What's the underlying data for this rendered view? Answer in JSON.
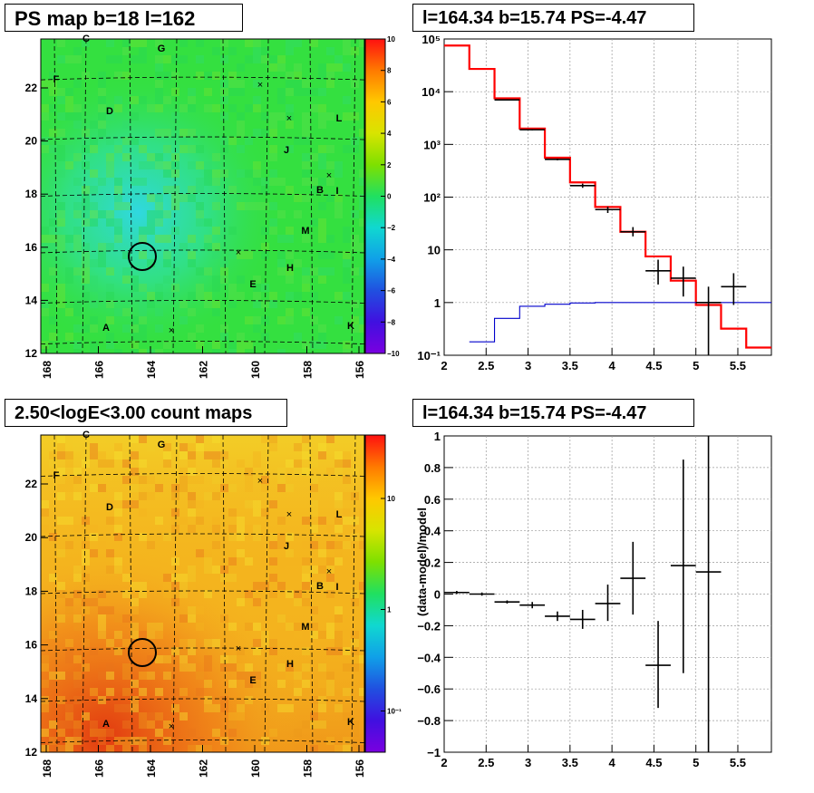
{
  "panels": {
    "ps_map_title": "PS map b=18 l=162",
    "count_map_title": "2.50<logE<3.00 count maps",
    "spectrum_title": "l=164.34 b=15.74 PS=-4.47",
    "residual_title": "l=164.34 b=15.74 PS=-4.47"
  },
  "maps": {
    "x_ticks": [
      "168",
      "166",
      "164",
      "162",
      "160",
      "158",
      "156"
    ],
    "y_ticks": [
      "22",
      "20",
      "18",
      "16",
      "14",
      "12"
    ],
    "source_labels": [
      "C",
      "G",
      "F",
      "D",
      "L",
      "J",
      "B",
      "I",
      "M",
      "H",
      "E",
      "A",
      "K"
    ],
    "ps_colorbar_ticks": [
      "10",
      "8",
      "6",
      "4",
      "2",
      "0",
      "−2",
      "−4",
      "−6",
      "−8",
      "−10"
    ],
    "count_colorbar_ticks": [
      "10",
      "1",
      "10⁻¹"
    ],
    "colors": {
      "ps_base": "#34e040",
      "count_base": "#f4b41e",
      "circle": "#000000"
    }
  },
  "chart_data": [
    {
      "type": "step-histogram",
      "title": "l=164.34 b=15.74 PS=-4.47",
      "xlabel": "",
      "ylabel": "",
      "xlim": [
        2,
        5.9
      ],
      "ylim": [
        0.1,
        100000
      ],
      "log_y": true,
      "grid": true,
      "x_ticks": [
        "2",
        "2.5",
        "3",
        "3.5",
        "4",
        "4.5",
        "5",
        "5.5"
      ],
      "y_ticks": [
        "10⁵",
        "10⁴",
        "10³",
        "10²",
        "10",
        "1",
        "10⁻¹"
      ],
      "series": [
        {
          "color": "#ff0000",
          "edges": [
            2.0,
            2.3,
            2.6,
            2.9,
            3.2,
            3.5,
            3.8,
            4.1,
            4.4,
            4.7,
            5.0,
            5.3,
            5.6,
            5.9
          ],
          "values": [
            75000,
            27000,
            7500,
            2000,
            560,
            190,
            65,
            22,
            7.5,
            2.6,
            0.9,
            0.32,
            0.14
          ]
        },
        {
          "color": "#0000cc",
          "edges": [
            2.3,
            2.6,
            2.9,
            3.2,
            3.5,
            3.8,
            4.1,
            4.4,
            4.7,
            5.0,
            5.3,
            5.9
          ],
          "values": [
            0.18,
            0.5,
            0.85,
            0.93,
            0.98,
            1.0,
            1.0,
            1.0,
            1.0,
            1.0,
            1.0
          ]
        },
        {
          "color": "#000000",
          "points": [
            {
              "x": 2.75,
              "y": 7000,
              "xerr": 0.15,
              "ylo": 6800,
              "yhi": 7200
            },
            {
              "x": 3.05,
              "y": 1900,
              "xerr": 0.15,
              "ylo": 1850,
              "yhi": 1950
            },
            {
              "x": 3.35,
              "y": 520,
              "xerr": 0.15,
              "ylo": 500,
              "yhi": 540
            },
            {
              "x": 3.65,
              "y": 165,
              "xerr": 0.15,
              "ylo": 150,
              "yhi": 180
            },
            {
              "x": 3.95,
              "y": 58,
              "xerr": 0.15,
              "ylo": 50,
              "yhi": 66
            },
            {
              "x": 4.25,
              "y": 22,
              "xerr": 0.15,
              "ylo": 18,
              "yhi": 27
            },
            {
              "x": 4.55,
              "y": 4.0,
              "xerr": 0.15,
              "ylo": 2.2,
              "yhi": 6.5
            },
            {
              "x": 4.85,
              "y": 2.9,
              "xerr": 0.15,
              "ylo": 1.3,
              "yhi": 4.8
            },
            {
              "x": 5.15,
              "y": 1.0,
              "xerr": 0.15,
              "ylo": 0.1,
              "yhi": 2.0
            },
            {
              "x": 5.45,
              "y": 2.0,
              "xerr": 0.15,
              "ylo": 0.9,
              "yhi": 3.6
            }
          ]
        }
      ]
    },
    {
      "type": "scatter-errorbars",
      "title": "l=164.34 b=15.74 PS=-4.47",
      "xlabel": "",
      "ylabel": "(data-model)/model",
      "xlim": [
        2,
        5.9
      ],
      "ylim": [
        -1,
        1
      ],
      "grid": true,
      "x_ticks": [
        "2",
        "2.5",
        "3",
        "3.5",
        "4",
        "4.5",
        "5",
        "5.5"
      ],
      "y_ticks": [
        "1",
        "0.8",
        "0.6",
        "0.4",
        "0.2",
        "0",
        "−0.2",
        "−0.4",
        "−0.6",
        "−0.8",
        "−1"
      ],
      "points": [
        {
          "x": 2.15,
          "y": 0.01,
          "xerr": 0.15,
          "ylo": 0.0,
          "yhi": 0.02
        },
        {
          "x": 2.45,
          "y": 0.0,
          "xerr": 0.15,
          "ylo": -0.01,
          "yhi": 0.01
        },
        {
          "x": 2.75,
          "y": -0.05,
          "xerr": 0.15,
          "ylo": -0.06,
          "yhi": -0.04
        },
        {
          "x": 3.05,
          "y": -0.07,
          "xerr": 0.15,
          "ylo": -0.09,
          "yhi": -0.05
        },
        {
          "x": 3.35,
          "y": -0.14,
          "xerr": 0.15,
          "ylo": -0.17,
          "yhi": -0.11
        },
        {
          "x": 3.65,
          "y": -0.16,
          "xerr": 0.15,
          "ylo": -0.22,
          "yhi": -0.1
        },
        {
          "x": 3.95,
          "y": -0.06,
          "xerr": 0.15,
          "ylo": -0.17,
          "yhi": 0.06
        },
        {
          "x": 4.25,
          "y": 0.1,
          "xerr": 0.15,
          "ylo": -0.13,
          "yhi": 0.33
        },
        {
          "x": 4.55,
          "y": -0.45,
          "xerr": 0.15,
          "ylo": -0.72,
          "yhi": -0.17
        },
        {
          "x": 4.85,
          "y": 0.18,
          "xerr": 0.15,
          "ylo": -0.5,
          "yhi": 0.85
        },
        {
          "x": 5.15,
          "y": 0.14,
          "xerr": 0.15,
          "ylo": -1.0,
          "yhi": 1.0
        }
      ]
    }
  ]
}
